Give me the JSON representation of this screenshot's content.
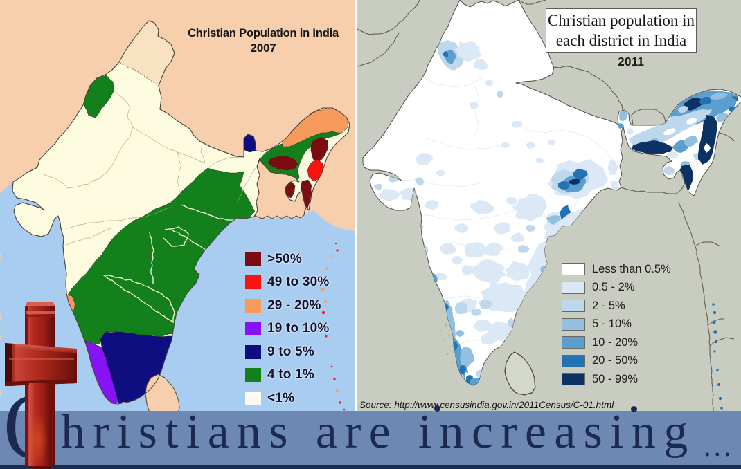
{
  "poster": {
    "banner": {
      "dropcap": "C",
      "text": "hristians are increasing",
      "ellipsis": "...",
      "bg_color": "#6d88b3",
      "text_color": "#1c2a52",
      "strip_color": "#1d2b52"
    }
  },
  "left_map": {
    "title_line1": "Christian Population in India",
    "title_line2": "2007",
    "legend": {
      "items": [
        {
          "label": ">50%",
          "color": "#7a0c12"
        },
        {
          "label": "49 to 30%",
          "color": "#fa1410"
        },
        {
          "label": "29 - 20%",
          "color": "#f79b5d"
        },
        {
          "label": "19 to 10%",
          "color": "#8712f5"
        },
        {
          "label": "9 to 5%",
          "color": "#0e0e80"
        },
        {
          "label": "4 to 1%",
          "color": "#14801c"
        },
        {
          "label": "<1%",
          "color": "#fffbef"
        }
      ]
    }
  },
  "right_map": {
    "title_line1": "Christian population in",
    "title_line2": "each district in India",
    "year": "2011",
    "source": "Source: http://www.censusindia.gov.in/2011Census/C-01.html",
    "legend": {
      "items": [
        {
          "label": "Less than 0.5%",
          "color": "#ffffff"
        },
        {
          "label": "0.5 - 2%",
          "color": "#dbe8f5"
        },
        {
          "label": "2 - 5%",
          "color": "#bdd7ec"
        },
        {
          "label": "5 - 10%",
          "color": "#94c0df"
        },
        {
          "label": "10 - 20%",
          "color": "#5a9fcd"
        },
        {
          "label": "20 - 50%",
          "color": "#2173b4"
        },
        {
          "label": "50 - 99%",
          "color": "#0c3263"
        }
      ]
    }
  },
  "palette_css": {
    "peach": "#f8cfac",
    "sea": "#a9cdf1",
    "cream": "#fdfce1",
    "ljk": "#f8e2c2",
    "lgreen": "#14801c",
    "lorange": "#f79b5d",
    "lmaroon": "#7a0c12",
    "lred": "#fa1410",
    "lnavy": "#0e0e80",
    "lpurple": "#8712f5",
    "rbg": "#c9ccc0",
    "rland": "#d4d7cb",
    "iwhite": "#ffffff",
    "b1": "#ffffff",
    "b2": "#dbe8f5",
    "b3": "#bdd7ec",
    "b4": "#94c0df",
    "b5": "#5a9fcd",
    "b6": "#2173b4",
    "b7": "#0c3263"
  }
}
